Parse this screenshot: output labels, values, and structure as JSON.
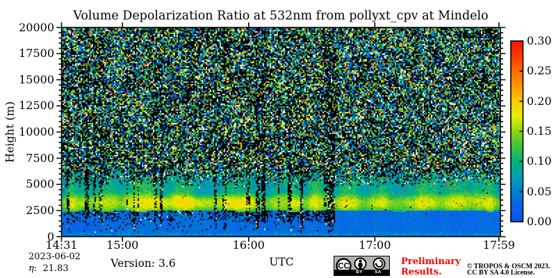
{
  "title": "Volume Depolarization Ratio at 532nm from pollyxt_cpv at Mindelo",
  "axes": {
    "ylabel": "Height (m)",
    "xlabel": "UTC",
    "ylim": [
      0,
      20000
    ],
    "y_ticks": [
      {
        "value": 0,
        "label": "0"
      },
      {
        "value": 2500,
        "label": "2500"
      },
      {
        "value": 5000,
        "label": "5000"
      },
      {
        "value": 7500,
        "label": "7500"
      },
      {
        "value": 10000,
        "label": "10000"
      },
      {
        "value": 12500,
        "label": "12500"
      },
      {
        "value": 15000,
        "label": "15000"
      },
      {
        "value": 17500,
        "label": "17500"
      },
      {
        "value": 20000,
        "label": "20000"
      }
    ],
    "y_minor_step": 500,
    "x_total_minutes": 208.7,
    "x_ticks": [
      {
        "minutes": 0,
        "label": "14:31"
      },
      {
        "minutes": 29,
        "label": "15:00"
      },
      {
        "minutes": 89,
        "label": "16:00"
      },
      {
        "minutes": 149,
        "label": "17:00"
      },
      {
        "minutes": 208,
        "label": "17:59"
      }
    ]
  },
  "colorbar": {
    "vmin": 0.0,
    "vmax": 0.3,
    "tick_step": 0.05,
    "ticks": [
      "0.00",
      "0.05",
      "0.10",
      "0.15",
      "0.20",
      "0.25",
      "0.30"
    ]
  },
  "footer": {
    "date": "2023-06-02",
    "eta": {
      "symbol": "η",
      "separator": ":",
      "value": "21.83"
    },
    "version": "Version: 3.6",
    "preliminary_line1": "Preliminary",
    "preliminary_line2": "Results.",
    "copyright_line1": "© TROPOS & OSCM 2023.",
    "copyright_line2": "CC BY SA 4.0 License.",
    "cc_badge": {
      "cc": "CC",
      "by": "BY",
      "sa": "SA"
    }
  },
  "chart_data": {
    "type": "heatmap",
    "title": "Volume Depolarization Ratio at 532nm from pollyxt_cpv at Mindelo",
    "xlabel": "UTC",
    "ylabel": "Height (m)",
    "date": "2023-06-02",
    "x_range": [
      "14:31",
      "17:59"
    ],
    "ylim": [
      0,
      20000
    ],
    "value_range": [
      0.0,
      0.3
    ],
    "x_ticks": [
      "14:31",
      "15:00",
      "16:00",
      "17:00",
      "17:59"
    ],
    "y_ticks": [
      0,
      2500,
      5000,
      7500,
      10000,
      12500,
      15000,
      17500,
      20000
    ],
    "colorbar_ticks": [
      0.0,
      0.05,
      0.1,
      0.15,
      0.2,
      0.25,
      0.3
    ],
    "legend_position": "right-colorbar",
    "grid": false,
    "colormap": [
      {
        "v": 0.0,
        "c": "#0b52f0"
      },
      {
        "v": 0.03,
        "c": "#0767e7"
      },
      {
        "v": 0.05,
        "c": "#0082d0"
      },
      {
        "v": 0.075,
        "c": "#009fb0"
      },
      {
        "v": 0.1,
        "c": "#00b377"
      },
      {
        "v": 0.125,
        "c": "#3fc43f"
      },
      {
        "v": 0.15,
        "c": "#8fd613"
      },
      {
        "v": 0.175,
        "c": "#e6ee00"
      },
      {
        "v": 0.2,
        "c": "#ffc900"
      },
      {
        "v": 0.225,
        "c": "#ff9800"
      },
      {
        "v": 0.25,
        "c": "#ff6d00"
      },
      {
        "v": 0.275,
        "c": "#ff3a00"
      },
      {
        "v": 0.3,
        "c": "#f91400"
      }
    ],
    "noise_black": "#000000",
    "noise_white": "#ffffff",
    "seed": 20230602,
    "features": {
      "noise_region": {
        "height_range": [
          5800,
          20000
        ],
        "black_fraction": 0.37,
        "white_fraction": 0.07,
        "description": "random speckle noise above the aerosol layers"
      },
      "dust_layer": {
        "height_range": [
          2430,
          4700
        ],
        "value_range": [
          0.1,
          0.21
        ],
        "description": "elevated depolarization layer (Saharan dust)"
      },
      "transition_zone": {
        "height_range": [
          4700,
          5800
        ],
        "value_range": [
          0.02,
          0.09
        ]
      },
      "marine_boundary_layer": {
        "height_range": [
          350,
          2430
        ],
        "value_range": [
          0.018,
          0.045
        ]
      },
      "surface_band": {
        "height_range": [
          0,
          350
        ],
        "value_range": [
          0.03,
          0.09
        ]
      },
      "dropout_columns": {
        "time_range_minutes": [
          0,
          129
        ],
        "height_range": [
          400,
          5300
        ],
        "description": "vertical black data gaps before ~16:40"
      },
      "dark_band_below_layer": {
        "time_range_minutes": [
          0,
          129
        ],
        "height_range": [
          1300,
          2430
        ],
        "description": "speckled low-signal band below dust layer before ~16:40"
      }
    }
  }
}
